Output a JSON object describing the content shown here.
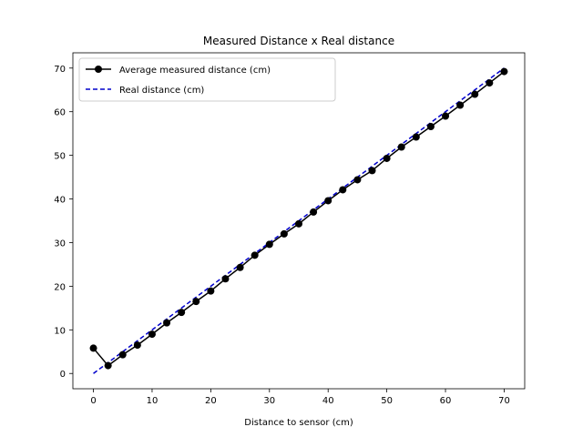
{
  "chart_data": {
    "type": "line",
    "title": "Measured Distance x Real distance",
    "xlabel": "Distance to sensor (cm)",
    "ylabel": "",
    "xlim": [
      -3.5,
      73.5
    ],
    "ylim": [
      -3.5,
      73.5
    ],
    "xticks": [
      0,
      10,
      20,
      30,
      40,
      50,
      60,
      70
    ],
    "yticks": [
      0,
      10,
      20,
      30,
      40,
      50,
      60,
      70
    ],
    "grid": false,
    "legend_position": "top-left",
    "series": [
      {
        "name": "Average measured distance (cm)",
        "color": "#000000",
        "style": "solid-markers",
        "x": [
          0,
          2.5,
          5,
          7.5,
          10,
          12.5,
          15,
          17.5,
          20,
          22.5,
          25,
          27.5,
          30,
          32.5,
          35,
          37.5,
          40,
          42.5,
          45,
          47.5,
          50,
          52.5,
          55,
          57.5,
          60,
          62.5,
          65,
          67.5,
          70
        ],
        "y": [
          5.8,
          1.8,
          4.3,
          6.5,
          9.0,
          11.6,
          14.0,
          16.5,
          18.9,
          21.7,
          24.3,
          27.1,
          29.6,
          32.0,
          34.3,
          37.0,
          39.6,
          42.1,
          44.4,
          46.5,
          49.3,
          51.9,
          54.2,
          56.6,
          59.0,
          61.5,
          64.0,
          66.6,
          69.2
        ]
      },
      {
        "name": "Real distance (cm)",
        "color": "#0000cc",
        "style": "dashed",
        "x": [
          0,
          70
        ],
        "y": [
          0,
          70
        ]
      }
    ]
  }
}
